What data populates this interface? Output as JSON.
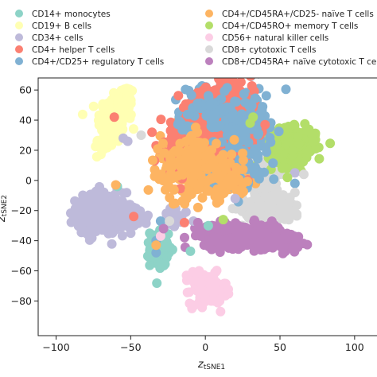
{
  "chart_data": {
    "type": "scatter",
    "xlabel": {
      "main": "z",
      "sub": "tSNE1"
    },
    "ylabel": {
      "main": "z",
      "sub": "tSNE2"
    },
    "xlim": [
      -112,
      115
    ],
    "ylim": [
      -103,
      68
    ],
    "xticks": [
      -100,
      -50,
      0,
      50,
      100
    ],
    "yticks": [
      60,
      40,
      20,
      0,
      -20,
      -40,
      -60,
      -80
    ],
    "grid": false,
    "legend": {
      "placement": "top",
      "columns": 2
    },
    "series": [
      {
        "name": "CD14+ monocytes",
        "color": "#8dd3c7",
        "clusters": [
          {
            "cx": -31,
            "cy": -45,
            "sx": 3,
            "sy": 6,
            "n": 110
          }
        ],
        "points": [
          [
            -10,
            -47
          ],
          [
            2,
            -30
          ],
          [
            -59,
            -4
          ]
        ]
      },
      {
        "name": "CD19+ B cells",
        "color": "#ffffb3",
        "clusters": [
          {
            "cx": -62,
            "cy": 40,
            "sx": 5,
            "sy": 8,
            "n": 130
          },
          {
            "cx": -54,
            "cy": 52,
            "sx": 3,
            "sy": 6,
            "n": 70
          },
          {
            "cx": -68,
            "cy": 25,
            "sx": 3,
            "sy": 4,
            "n": 40
          }
        ],
        "points": []
      },
      {
        "name": "CD34+ cells",
        "color": "#bebada",
        "clusters": [
          {
            "cx": -70,
            "cy": -22,
            "sx": 8,
            "sy": 7,
            "n": 240
          },
          {
            "cx": -50,
            "cy": -24,
            "sx": 6,
            "sy": 4,
            "n": 60
          },
          {
            "cx": -22,
            "cy": -25,
            "sx": 3,
            "sy": 3,
            "n": 25
          }
        ],
        "points": [
          [
            -55,
            28
          ],
          [
            -52,
            26
          ],
          [
            20,
            -12
          ],
          [
            60,
            5
          ],
          [
            -8,
            -27
          ]
        ]
      },
      {
        "name": "CD4+ helper T cells",
        "color": "#fb8072",
        "clusters": [
          {
            "cx": 12,
            "cy": 38,
            "sx": 10,
            "sy": 11,
            "n": 400
          },
          {
            "cx": -18,
            "cy": 22,
            "sx": 6,
            "sy": 8,
            "n": 80
          }
        ],
        "points": [
          [
            -48,
            -24
          ],
          [
            -61,
            42
          ],
          [
            -14,
            -28
          ],
          [
            40,
            37
          ]
        ]
      },
      {
        "name": "CD4+/CD25+ regulatory T cells",
        "color": "#80b1d3",
        "clusters": [
          {
            "cx": 25,
            "cy": 30,
            "sx": 8,
            "sy": 14,
            "n": 220
          },
          {
            "cx": 5,
            "cy": 48,
            "sx": 9,
            "sy": 7,
            "n": 170
          },
          {
            "cx": -15,
            "cy": 37,
            "sx": 3,
            "sy": 4,
            "n": 30
          }
        ],
        "points": [
          [
            -33,
            -48
          ],
          [
            60,
            -2
          ],
          [
            -30,
            -27
          ],
          [
            -33,
            -40
          ]
        ]
      },
      {
        "name": "CD4+/CD45RA+/CD25- naïve T cells",
        "color": "#fdb462",
        "clusters": [
          {
            "cx": -6,
            "cy": 11,
            "sx": 12,
            "sy": 10,
            "n": 320
          },
          {
            "cx": 18,
            "cy": 3,
            "sx": 6,
            "sy": 6,
            "n": 80
          }
        ],
        "points": [
          [
            -33,
            -43
          ],
          [
            -60,
            -3
          ],
          [
            25,
            18
          ]
        ]
      },
      {
        "name": "CD4+/CD45RO+ memory T cells",
        "color": "#b3de69",
        "clusters": [
          {
            "cx": 58,
            "cy": 22,
            "sx": 8,
            "sy": 6,
            "n": 250
          }
        ],
        "points": [
          [
            32,
            42
          ],
          [
            30,
            38
          ],
          [
            12,
            -26
          ],
          [
            55,
            2
          ]
        ]
      },
      {
        "name": "CD56+ natural killer cells",
        "color": "#fccde5",
        "clusters": [
          {
            "cx": 2,
            "cy": -72,
            "sx": 6,
            "sy": 5,
            "n": 140
          },
          {
            "cx": -5,
            "cy": -66,
            "sx": 3,
            "sy": 3,
            "n": 30
          }
        ],
        "points": [
          [
            -30,
            -37
          ],
          [
            -9,
            -85
          ]
        ]
      },
      {
        "name": "CD8+ cytotoxic T cells",
        "color": "#d9d9d9",
        "clusters": [
          {
            "cx": 38,
            "cy": 5,
            "sx": 7,
            "sy": 6,
            "n": 170
          },
          {
            "cx": 45,
            "cy": -18,
            "sx": 10,
            "sy": 5,
            "n": 160
          }
        ],
        "points": [
          [
            -24,
            -27
          ],
          [
            -43,
            30
          ],
          [
            66,
            4
          ],
          [
            60,
            -8
          ]
        ]
      },
      {
        "name": "CD8+/CD45RA+ naïve cytotoxic T cells",
        "color": "#bc80bd",
        "clusters": [
          {
            "cx": 25,
            "cy": -37,
            "sx": 13,
            "sy": 4,
            "n": 300
          },
          {
            "cx": 48,
            "cy": -40,
            "sx": 8,
            "sy": 3,
            "n": 90
          },
          {
            "cx": 5,
            "cy": -33,
            "sx": 6,
            "sy": 2,
            "n": 60
          }
        ],
        "points": [
          [
            -5,
            -28
          ],
          [
            50,
            -43
          ],
          [
            -28,
            -32
          ]
        ]
      }
    ]
  }
}
